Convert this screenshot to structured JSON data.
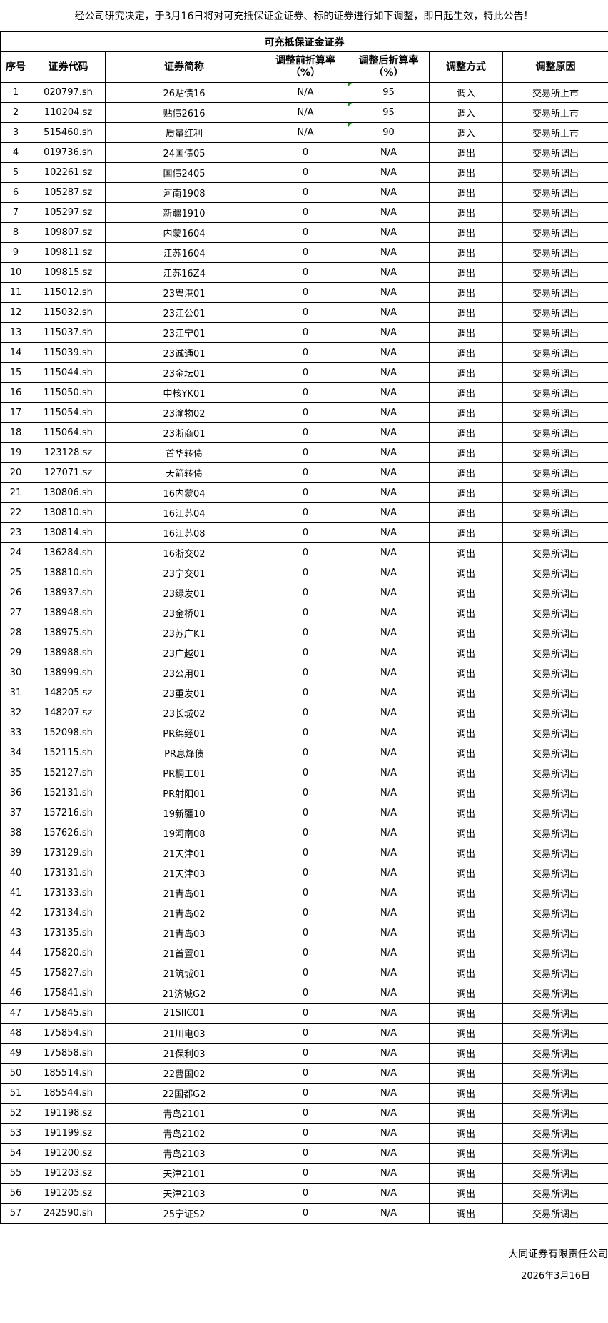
{
  "notice": "经公司研究决定，于3月16日将对可充抵保证金证券、标的证券进行如下调整，即日起生效，特此公告！",
  "table": {
    "title": "可充抵保证金证券",
    "headers": [
      "序号",
      "证券代码",
      "证券简称",
      "调整前折算率（%）",
      "调整后折算率（%）",
      "调整方式",
      "调整原因"
    ],
    "flag_color": "#1a8a1a",
    "rows": [
      [
        "1",
        "020797.sh",
        "26贴债16",
        "N/A",
        "95",
        "调入",
        "交易所上市"
      ],
      [
        "2",
        "110204.sz",
        "贴债2616",
        "N/A",
        "95",
        "调入",
        "交易所上市"
      ],
      [
        "3",
        "515460.sh",
        "质量红利",
        "N/A",
        "90",
        "调入",
        "交易所上市"
      ],
      [
        "4",
        "019736.sh",
        "24国债05",
        "0",
        "N/A",
        "调出",
        "交易所调出"
      ],
      [
        "5",
        "102261.sz",
        "国债2405",
        "0",
        "N/A",
        "调出",
        "交易所调出"
      ],
      [
        "6",
        "105287.sz",
        "河南1908",
        "0",
        "N/A",
        "调出",
        "交易所调出"
      ],
      [
        "7",
        "105297.sz",
        "新疆1910",
        "0",
        "N/A",
        "调出",
        "交易所调出"
      ],
      [
        "8",
        "109807.sz",
        "内蒙1604",
        "0",
        "N/A",
        "调出",
        "交易所调出"
      ],
      [
        "9",
        "109811.sz",
        "江苏1604",
        "0",
        "N/A",
        "调出",
        "交易所调出"
      ],
      [
        "10",
        "109815.sz",
        "江苏16Z4",
        "0",
        "N/A",
        "调出",
        "交易所调出"
      ],
      [
        "11",
        "115012.sh",
        "23粤港01",
        "0",
        "N/A",
        "调出",
        "交易所调出"
      ],
      [
        "12",
        "115032.sh",
        "23江公01",
        "0",
        "N/A",
        "调出",
        "交易所调出"
      ],
      [
        "13",
        "115037.sh",
        "23江宁01",
        "0",
        "N/A",
        "调出",
        "交易所调出"
      ],
      [
        "14",
        "115039.sh",
        "23诚通01",
        "0",
        "N/A",
        "调出",
        "交易所调出"
      ],
      [
        "15",
        "115044.sh",
        "23金坛01",
        "0",
        "N/A",
        "调出",
        "交易所调出"
      ],
      [
        "16",
        "115050.sh",
        "中核YK01",
        "0",
        "N/A",
        "调出",
        "交易所调出"
      ],
      [
        "17",
        "115054.sh",
        "23渝物02",
        "0",
        "N/A",
        "调出",
        "交易所调出"
      ],
      [
        "18",
        "115064.sh",
        "23浙商01",
        "0",
        "N/A",
        "调出",
        "交易所调出"
      ],
      [
        "19",
        "123128.sz",
        "首华转债",
        "0",
        "N/A",
        "调出",
        "交易所调出"
      ],
      [
        "20",
        "127071.sz",
        "天箭转债",
        "0",
        "N/A",
        "调出",
        "交易所调出"
      ],
      [
        "21",
        "130806.sh",
        "16内蒙04",
        "0",
        "N/A",
        "调出",
        "交易所调出"
      ],
      [
        "22",
        "130810.sh",
        "16江苏04",
        "0",
        "N/A",
        "调出",
        "交易所调出"
      ],
      [
        "23",
        "130814.sh",
        "16江苏08",
        "0",
        "N/A",
        "调出",
        "交易所调出"
      ],
      [
        "24",
        "136284.sh",
        "16浙交02",
        "0",
        "N/A",
        "调出",
        "交易所调出"
      ],
      [
        "25",
        "138810.sh",
        "23宁交01",
        "0",
        "N/A",
        "调出",
        "交易所调出"
      ],
      [
        "26",
        "138937.sh",
        "23绿发01",
        "0",
        "N/A",
        "调出",
        "交易所调出"
      ],
      [
        "27",
        "138948.sh",
        "23金桥01",
        "0",
        "N/A",
        "调出",
        "交易所调出"
      ],
      [
        "28",
        "138975.sh",
        "23苏广K1",
        "0",
        "N/A",
        "调出",
        "交易所调出"
      ],
      [
        "29",
        "138988.sh",
        "23广越01",
        "0",
        "N/A",
        "调出",
        "交易所调出"
      ],
      [
        "30",
        "138999.sh",
        "23公用01",
        "0",
        "N/A",
        "调出",
        "交易所调出"
      ],
      [
        "31",
        "148205.sz",
        "23重发01",
        "0",
        "N/A",
        "调出",
        "交易所调出"
      ],
      [
        "32",
        "148207.sz",
        "23长城02",
        "0",
        "N/A",
        "调出",
        "交易所调出"
      ],
      [
        "33",
        "152098.sh",
        "PR绵经01",
        "0",
        "N/A",
        "调出",
        "交易所调出"
      ],
      [
        "34",
        "152115.sh",
        "PR息烽债",
        "0",
        "N/A",
        "调出",
        "交易所调出"
      ],
      [
        "35",
        "152127.sh",
        "PR桐工01",
        "0",
        "N/A",
        "调出",
        "交易所调出"
      ],
      [
        "36",
        "152131.sh",
        "PR射阳01",
        "0",
        "N/A",
        "调出",
        "交易所调出"
      ],
      [
        "37",
        "157216.sh",
        "19新疆10",
        "0",
        "N/A",
        "调出",
        "交易所调出"
      ],
      [
        "38",
        "157626.sh",
        "19河南08",
        "0",
        "N/A",
        "调出",
        "交易所调出"
      ],
      [
        "39",
        "173129.sh",
        "21天津01",
        "0",
        "N/A",
        "调出",
        "交易所调出"
      ],
      [
        "40",
        "173131.sh",
        "21天津03",
        "0",
        "N/A",
        "调出",
        "交易所调出"
      ],
      [
        "41",
        "173133.sh",
        "21青岛01",
        "0",
        "N/A",
        "调出",
        "交易所调出"
      ],
      [
        "42",
        "173134.sh",
        "21青岛02",
        "0",
        "N/A",
        "调出",
        "交易所调出"
      ],
      [
        "43",
        "173135.sh",
        "21青岛03",
        "0",
        "N/A",
        "调出",
        "交易所调出"
      ],
      [
        "44",
        "175820.sh",
        "21首置01",
        "0",
        "N/A",
        "调出",
        "交易所调出"
      ],
      [
        "45",
        "175827.sh",
        "21筑城01",
        "0",
        "N/A",
        "调出",
        "交易所调出"
      ],
      [
        "46",
        "175841.sh",
        "21济城G2",
        "0",
        "N/A",
        "调出",
        "交易所调出"
      ],
      [
        "47",
        "175845.sh",
        "21SIIC01",
        "0",
        "N/A",
        "调出",
        "交易所调出"
      ],
      [
        "48",
        "175854.sh",
        "21川电03",
        "0",
        "N/A",
        "调出",
        "交易所调出"
      ],
      [
        "49",
        "175858.sh",
        "21保利03",
        "0",
        "N/A",
        "调出",
        "交易所调出"
      ],
      [
        "50",
        "185514.sh",
        "22曹国02",
        "0",
        "N/A",
        "调出",
        "交易所调出"
      ],
      [
        "51",
        "185544.sh",
        "22国都G2",
        "0",
        "N/A",
        "调出",
        "交易所调出"
      ],
      [
        "52",
        "191198.sz",
        "青岛2101",
        "0",
        "N/A",
        "调出",
        "交易所调出"
      ],
      [
        "53",
        "191199.sz",
        "青岛2102",
        "0",
        "N/A",
        "调出",
        "交易所调出"
      ],
      [
        "54",
        "191200.sz",
        "青岛2103",
        "0",
        "N/A",
        "调出",
        "交易所调出"
      ],
      [
        "55",
        "191203.sz",
        "天津2101",
        "0",
        "N/A",
        "调出",
        "交易所调出"
      ],
      [
        "56",
        "191205.sz",
        "天津2103",
        "0",
        "N/A",
        "调出",
        "交易所调出"
      ],
      [
        "57",
        "242590.sh",
        "25宁证S2",
        "0",
        "N/A",
        "调出",
        "交易所调出"
      ]
    ]
  },
  "footer": {
    "company": "大同证券有限责任公司",
    "date": "2026年3月16日"
  }
}
